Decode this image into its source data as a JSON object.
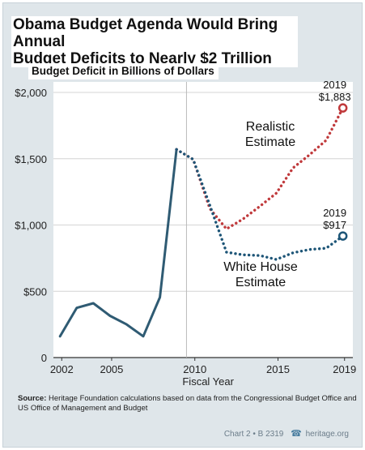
{
  "title_lines": [
    "Obama Budget Agenda Would Bring Annual",
    "Budget Deficits to Nearly $2 Trillion"
  ],
  "subtitle": "Budget Deficit in Billions of Dollars",
  "source_label": "Source:",
  "source_text": "Heritage Foundation calculations based on data from the Congressional Budget Office and US Office of Management and Budget",
  "footer": {
    "chart_id": "Chart 2 • B 2319",
    "site": "heritage.org"
  },
  "colors": {
    "historical": "#2f5b73",
    "realistic": "#c0393b",
    "white_house": "#1d5577",
    "panel": "#dfe6ea"
  },
  "chart_data": {
    "type": "line",
    "xlabel": "Fiscal Year",
    "ylabel": "",
    "xlim": [
      2001.5,
      2019.5
    ],
    "ylim": [
      0,
      2000
    ],
    "yticks": [
      0,
      500,
      1000,
      1500,
      2000
    ],
    "ytick_labels": [
      "0",
      "$500",
      "$1,000",
      "$1,500",
      "$2,000"
    ],
    "xticks": [
      2002,
      2005,
      2010,
      2015,
      2019
    ],
    "xtick_labels": [
      "2002",
      "2005",
      "2010",
      "2015",
      "2019"
    ],
    "grid": true,
    "vline": 2009.5,
    "series": [
      {
        "key": "historical",
        "style": "solid",
        "x": [
          2001.9,
          2002.9,
          2003.9,
          2004.9,
          2005.9,
          2006.9,
          2007.9,
          2008.9
        ],
        "y": [
          160,
          375,
          410,
          315,
          250,
          160,
          455,
          1570
        ]
      },
      {
        "key": "realistic",
        "name_lines": [
          "Realistic",
          "Estimate"
        ],
        "style": "dotted",
        "x": [
          2008.9,
          2009.9,
          2010.9,
          2011.9,
          2012.9,
          2013.9,
          2014.9,
          2015.9,
          2016.9,
          2017.9,
          2018.9
        ],
        "y": [
          1570,
          1495,
          1125,
          970,
          1045,
          1140,
          1240,
          1430,
          1530,
          1640,
          1883
        ],
        "endpoint_label": [
          "2019",
          "$1,883"
        ]
      },
      {
        "key": "white_house",
        "name_lines": [
          "White House",
          "Estimate"
        ],
        "style": "dotted",
        "x": [
          2008.9,
          2009.9,
          2010.9,
          2011.9,
          2012.9,
          2013.9,
          2014.9,
          2015.9,
          2016.9,
          2017.9,
          2018.9
        ],
        "y": [
          1570,
          1495,
          1150,
          795,
          775,
          770,
          740,
          790,
          815,
          825,
          917
        ],
        "endpoint_label": [
          "2019",
          "$917"
        ]
      }
    ]
  }
}
